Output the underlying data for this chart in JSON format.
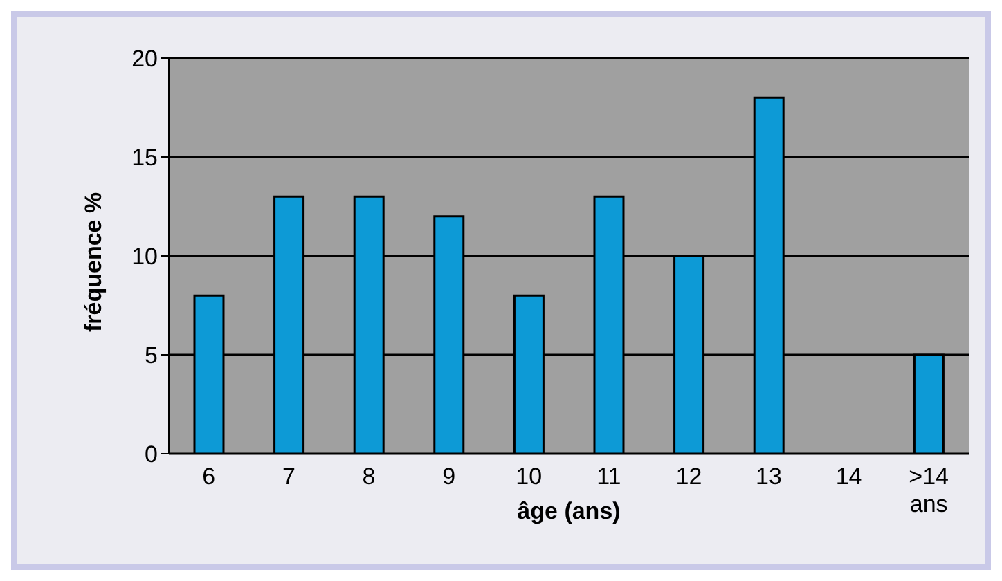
{
  "chart_data": {
    "type": "bar",
    "xlabel": "âge (ans)",
    "ylabel": "fréquence %",
    "categories": [
      "6",
      "7",
      "8",
      "9",
      "10",
      "11",
      "12",
      "13",
      "14",
      ">14 ans"
    ],
    "values": [
      8,
      13,
      13,
      12,
      8,
      13,
      10,
      18,
      0,
      5
    ],
    "color": "#0d9ad6",
    "ylim": [
      0,
      20
    ],
    "yticks": [
      0,
      5,
      10,
      15,
      20
    ],
    "grid": "y"
  }
}
